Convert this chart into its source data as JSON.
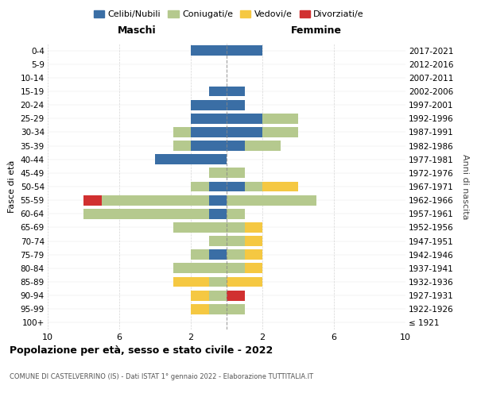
{
  "age_groups": [
    "100+",
    "95-99",
    "90-94",
    "85-89",
    "80-84",
    "75-79",
    "70-74",
    "65-69",
    "60-64",
    "55-59",
    "50-54",
    "45-49",
    "40-44",
    "35-39",
    "30-34",
    "25-29",
    "20-24",
    "15-19",
    "10-14",
    "5-9",
    "0-4"
  ],
  "birth_years": [
    "≤ 1921",
    "1922-1926",
    "1927-1931",
    "1932-1936",
    "1937-1941",
    "1942-1946",
    "1947-1951",
    "1952-1956",
    "1957-1961",
    "1962-1966",
    "1967-1971",
    "1972-1976",
    "1977-1981",
    "1982-1986",
    "1987-1991",
    "1992-1996",
    "1997-2001",
    "2002-2006",
    "2007-2011",
    "2012-2016",
    "2017-2021"
  ],
  "maschi": {
    "celibi": [
      0,
      0,
      0,
      0,
      0,
      1,
      0,
      0,
      1,
      1,
      1,
      0,
      4,
      2,
      2,
      2,
      2,
      1,
      0,
      0,
      2
    ],
    "coniugati": [
      0,
      1,
      1,
      1,
      3,
      1,
      1,
      3,
      7,
      6,
      1,
      1,
      0,
      1,
      1,
      0,
      0,
      0,
      0,
      0,
      0
    ],
    "vedovi": [
      0,
      1,
      1,
      2,
      0,
      0,
      0,
      0,
      0,
      0,
      0,
      0,
      0,
      0,
      0,
      0,
      0,
      0,
      0,
      0,
      0
    ],
    "divorziati": [
      0,
      0,
      0,
      0,
      0,
      0,
      0,
      0,
      0,
      1,
      0,
      0,
      0,
      0,
      0,
      0,
      0,
      0,
      0,
      0,
      0
    ]
  },
  "femmine": {
    "nubili": [
      0,
      0,
      0,
      0,
      0,
      0,
      0,
      0,
      0,
      0,
      1,
      0,
      0,
      1,
      2,
      2,
      1,
      1,
      0,
      0,
      2
    ],
    "coniugate": [
      0,
      1,
      0,
      0,
      1,
      1,
      1,
      1,
      1,
      5,
      1,
      1,
      0,
      2,
      2,
      2,
      0,
      0,
      0,
      0,
      0
    ],
    "vedove": [
      0,
      0,
      0,
      2,
      1,
      1,
      1,
      1,
      0,
      0,
      2,
      0,
      0,
      0,
      0,
      0,
      0,
      0,
      0,
      0,
      0
    ],
    "divorziate": [
      0,
      0,
      1,
      0,
      0,
      0,
      0,
      0,
      0,
      0,
      0,
      0,
      0,
      0,
      0,
      0,
      0,
      0,
      0,
      0,
      0
    ]
  },
  "colors": {
    "celibi": "#3a6ea5",
    "coniugati": "#b5c98e",
    "vedovi": "#f5c842",
    "divorziati": "#d13030"
  },
  "xlim": 10,
  "title": "Popolazione per età, sesso e stato civile - 2022",
  "subtitle": "COMUNE DI CASTELVERRINO (IS) - Dati ISTAT 1° gennaio 2022 - Elaborazione TUTTITALIA.IT",
  "xlabel_left": "Maschi",
  "xlabel_right": "Femmine",
  "ylabel_left": "Fasce di età",
  "ylabel_right": "Anni di nascita",
  "legend_labels": [
    "Celibi/Nubili",
    "Coniugati/e",
    "Vedovi/e",
    "Divorziati/e"
  ],
  "bg_color": "#ffffff",
  "grid_color": "#cccccc",
  "xticks": [
    -10,
    -6,
    -2,
    2,
    6,
    10
  ],
  "xticklabels": [
    "10",
    "6",
    "2",
    "2",
    "6",
    "10"
  ]
}
